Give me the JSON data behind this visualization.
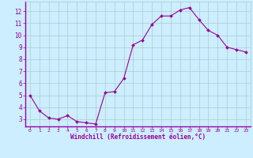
{
  "x": [
    0,
    1,
    2,
    3,
    4,
    5,
    6,
    7,
    8,
    9,
    10,
    11,
    12,
    13,
    14,
    15,
    16,
    17,
    18,
    19,
    20,
    21,
    22,
    23
  ],
  "y": [
    5.0,
    3.7,
    3.1,
    3.0,
    3.3,
    2.8,
    2.7,
    2.6,
    5.2,
    5.3,
    6.4,
    9.2,
    9.6,
    10.9,
    11.6,
    11.6,
    12.1,
    12.3,
    11.3,
    10.4,
    10.0,
    9.0,
    8.8,
    8.6
  ],
  "line_color": "#990099",
  "marker": "D",
  "marker_size": 2,
  "bg_color": "#cceeff",
  "grid_color": "#aacccc",
  "xlabel": "Windchill (Refroidissement éolien,°C)",
  "xlim": [
    -0.5,
    23.5
  ],
  "ylim": [
    2.4,
    12.8
  ],
  "yticks": [
    3,
    4,
    5,
    6,
    7,
    8,
    9,
    10,
    11,
    12
  ],
  "xticks": [
    0,
    1,
    2,
    3,
    4,
    5,
    6,
    7,
    8,
    9,
    10,
    11,
    12,
    13,
    14,
    15,
    16,
    17,
    18,
    19,
    20,
    21,
    22,
    23
  ],
  "tick_color": "#990099",
  "label_color": "#990099",
  "xlabel_bar_color": "#9900aa",
  "xlabel_bar_bg": "#cceeff",
  "spine_color": "#9900aa"
}
